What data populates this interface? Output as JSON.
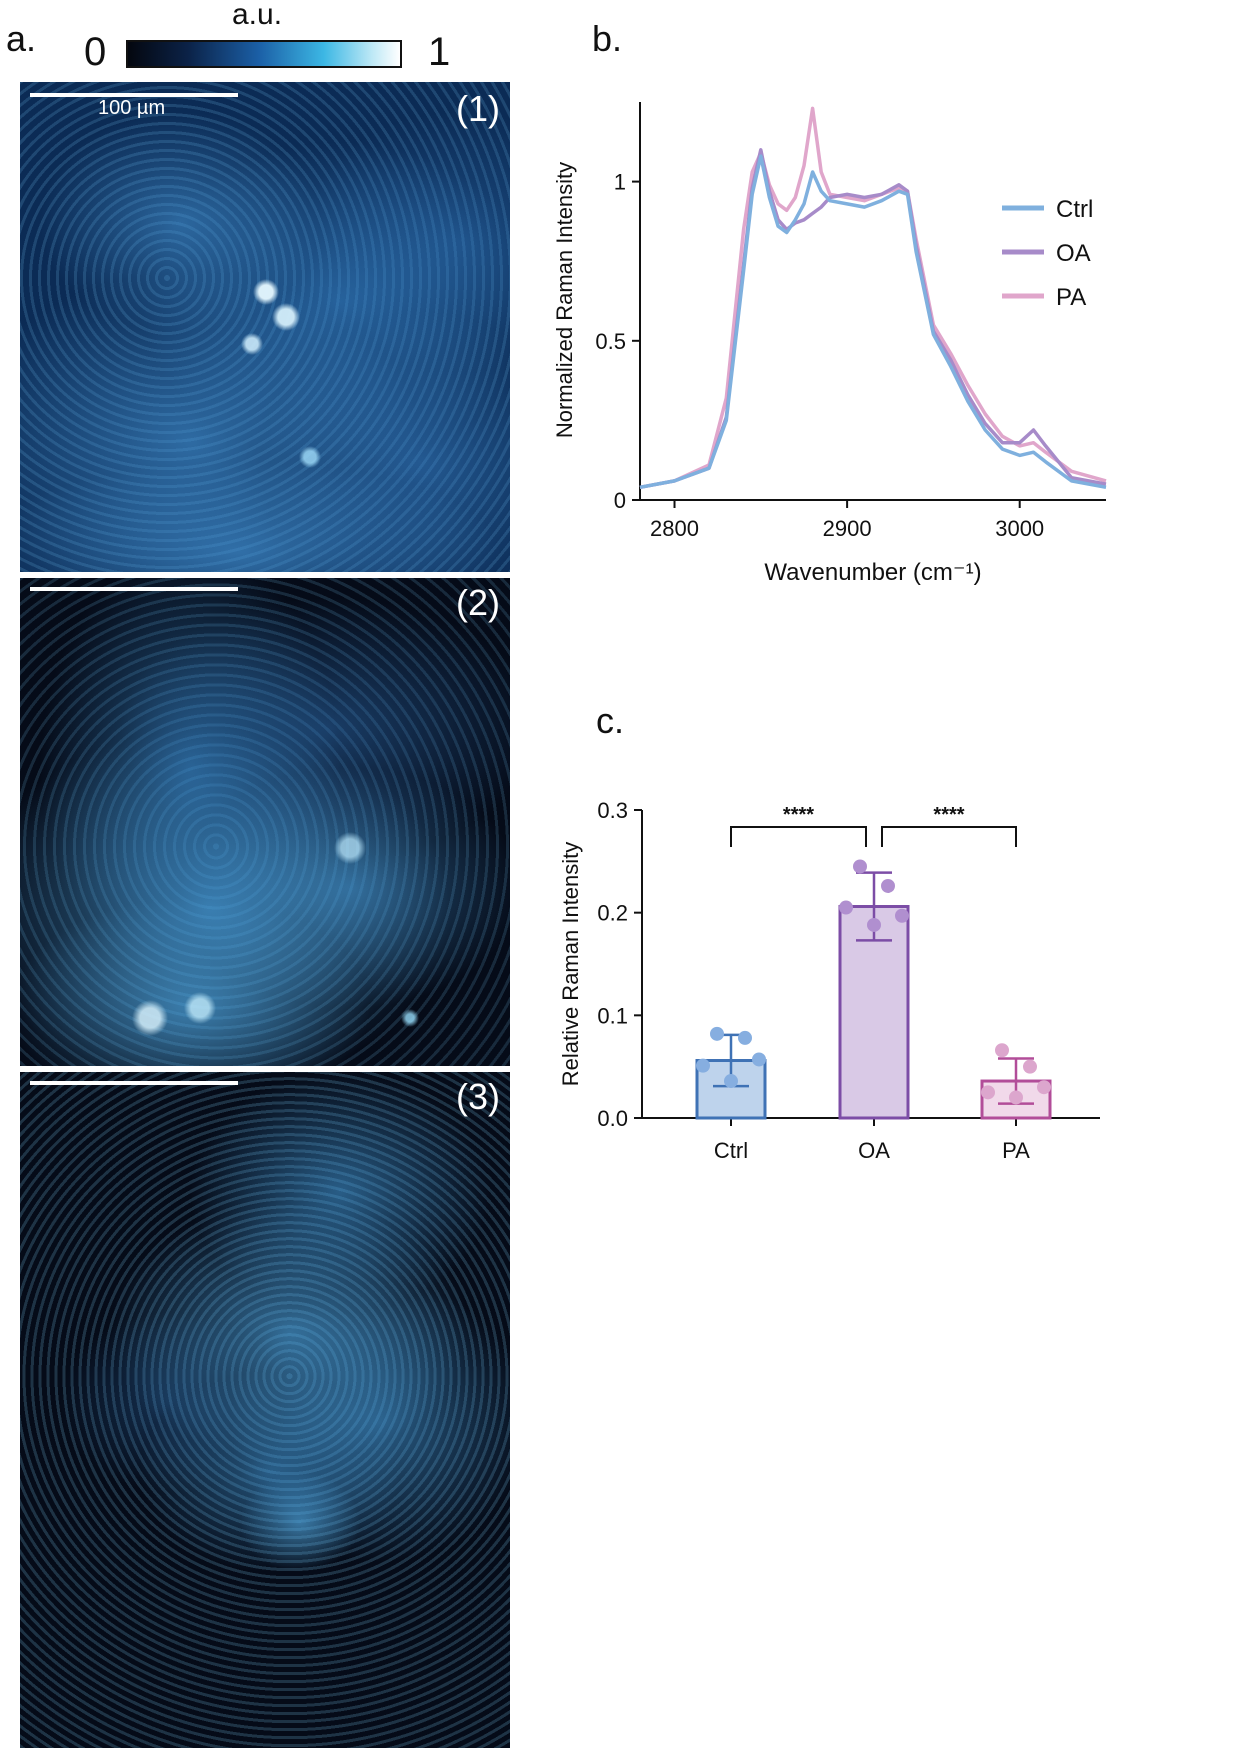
{
  "panel_labels": {
    "a": "a.",
    "b": "b.",
    "c": "c."
  },
  "colorbar": {
    "title": "a.u.",
    "min_label": "0",
    "max_label": "1"
  },
  "micrographs": [
    {
      "label": "(1)",
      "scale_text": "100 µm"
    },
    {
      "label": "(2)",
      "scale_text": ""
    },
    {
      "label": "(3)",
      "scale_text": ""
    }
  ],
  "chart_data": [
    {
      "type": "line",
      "xlabel": "Wavenumber (cm⁻¹)",
      "ylabel": "Normalized Raman Intensity",
      "xlim": [
        2780,
        3050
      ],
      "ylim": [
        0,
        1.25
      ],
      "xticks": [
        2800,
        2900,
        3000
      ],
      "yticks": [
        0,
        0.5,
        1
      ],
      "ytick_labels": [
        "0",
        "0.5",
        "1"
      ],
      "legend_position": "right",
      "grid": false,
      "series": [
        {
          "name": "Ctrl",
          "color": "#7fb0de",
          "x": [
            2780,
            2800,
            2820,
            2830,
            2840,
            2845,
            2850,
            2855,
            2860,
            2865,
            2870,
            2875,
            2880,
            2885,
            2890,
            2900,
            2910,
            2920,
            2930,
            2935,
            2940,
            2950,
            2960,
            2970,
            2980,
            2990,
            3000,
            3008,
            3015,
            3030,
            3050
          ],
          "y": [
            0.04,
            0.06,
            0.1,
            0.25,
            0.72,
            0.96,
            1.08,
            0.95,
            0.86,
            0.84,
            0.88,
            0.93,
            1.03,
            0.97,
            0.94,
            0.93,
            0.92,
            0.94,
            0.97,
            0.96,
            0.78,
            0.52,
            0.42,
            0.31,
            0.22,
            0.16,
            0.14,
            0.15,
            0.12,
            0.06,
            0.04
          ]
        },
        {
          "name": "OA",
          "color": "#a78bc9",
          "x": [
            2780,
            2800,
            2820,
            2830,
            2840,
            2845,
            2850,
            2855,
            2860,
            2865,
            2870,
            2875,
            2880,
            2885,
            2890,
            2900,
            2910,
            2920,
            2930,
            2935,
            2940,
            2950,
            2960,
            2970,
            2980,
            2990,
            3000,
            3008,
            3015,
            3030,
            3050
          ],
          "y": [
            0.04,
            0.06,
            0.1,
            0.26,
            0.74,
            0.98,
            1.1,
            0.97,
            0.88,
            0.85,
            0.87,
            0.88,
            0.9,
            0.92,
            0.95,
            0.96,
            0.95,
            0.96,
            0.99,
            0.97,
            0.8,
            0.53,
            0.44,
            0.33,
            0.24,
            0.18,
            0.18,
            0.22,
            0.17,
            0.07,
            0.05
          ]
        },
        {
          "name": "PA",
          "color": "#e0a6cb",
          "x": [
            2780,
            2800,
            2820,
            2830,
            2840,
            2845,
            2850,
            2855,
            2860,
            2865,
            2870,
            2875,
            2880,
            2885,
            2890,
            2900,
            2910,
            2920,
            2930,
            2935,
            2940,
            2950,
            2960,
            2970,
            2980,
            2990,
            3000,
            3008,
            3015,
            3030,
            3050
          ],
          "y": [
            0.04,
            0.06,
            0.11,
            0.32,
            0.85,
            1.03,
            1.09,
            0.99,
            0.93,
            0.91,
            0.95,
            1.05,
            1.23,
            1.03,
            0.96,
            0.95,
            0.94,
            0.96,
            0.98,
            0.97,
            0.82,
            0.55,
            0.46,
            0.36,
            0.27,
            0.2,
            0.17,
            0.18,
            0.15,
            0.09,
            0.06
          ]
        }
      ]
    },
    {
      "type": "bar",
      "ylabel": "Relative Raman Intensity",
      "categories": [
        "Ctrl",
        "OA",
        "PA"
      ],
      "ylim": [
        0,
        0.3
      ],
      "yticks": [
        0.0,
        0.1,
        0.2,
        0.3
      ],
      "ytick_labels": [
        "0.0",
        "0.1",
        "0.2",
        "0.3"
      ],
      "values": [
        0.056,
        0.206,
        0.036
      ],
      "errors": [
        0.025,
        0.033,
        0.022
      ],
      "bar_fill": [
        "#bed3ec",
        "#d9c9e6",
        "#f1d9ea"
      ],
      "bar_edge": [
        "#3f72b5",
        "#7c4da6",
        "#b24d99"
      ],
      "point_colors": [
        "#86aee0",
        "#b08fcf",
        "#dca6cd"
      ],
      "points": [
        [
          0.082,
          0.078,
          0.057,
          0.051,
          0.036
        ],
        [
          0.245,
          0.226,
          0.197,
          0.205,
          0.188
        ],
        [
          0.066,
          0.05,
          0.03,
          0.025,
          0.02
        ]
      ],
      "significance": [
        {
          "from": 0,
          "to": 1,
          "label": "****"
        },
        {
          "from": 1,
          "to": 2,
          "label": "****"
        }
      ]
    }
  ]
}
